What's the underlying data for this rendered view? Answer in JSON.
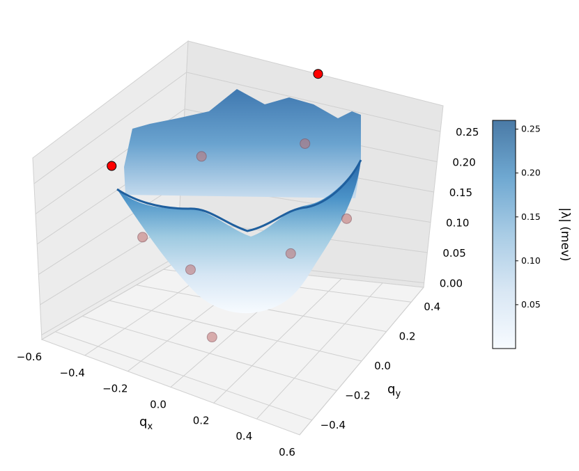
{
  "chart_data": {
    "type": "surface3d",
    "title": "",
    "x": {
      "label": "q",
      "sub": "x",
      "ticks": [
        "−0.6",
        "−0.4",
        "−0.2",
        "0.0",
        "0.2",
        "0.4",
        "0.6"
      ],
      "lim": [
        -0.6,
        0.6
      ]
    },
    "y": {
      "label": "q",
      "sub": "y",
      "ticks": [
        "−0.4",
        "−0.2",
        "0.0",
        "0.2",
        "0.4"
      ],
      "lim": [
        -0.5,
        0.5
      ]
    },
    "z": {
      "ticks": [
        "0.00",
        "0.05",
        "0.10",
        "0.15",
        "0.20",
        "0.25"
      ],
      "lim": [
        0.0,
        0.26
      ]
    },
    "colorbar": {
      "label": "|λ| (mev)",
      "ticks": [
        "0.05",
        "0.10",
        "0.15",
        "0.20",
        "0.25"
      ],
      "range": [
        0.0,
        0.26
      ],
      "colormap": "Blues",
      "color_low": "#f7fbff",
      "color_high": "#4a7aa6"
    },
    "surface": {
      "min": 0.0,
      "max": 0.26,
      "shape": "bowl with rippled rim",
      "grid": true
    },
    "points": {
      "red_markers": [
        {
          "qx": -0.58,
          "qy": -0.05,
          "value": 0.18
        },
        {
          "qx": 0.05,
          "qy": 0.5,
          "value": 0.28
        }
      ],
      "faint_markers": [
        {
          "qx": -0.25,
          "qy": 0.1,
          "value": 0.2
        },
        {
          "qx": 0.15,
          "qy": 0.25,
          "value": 0.22
        },
        {
          "qx": -0.3,
          "qy": -0.25,
          "value": 0.12
        },
        {
          "qx": 0.45,
          "qy": 0.1,
          "value": 0.15
        },
        {
          "qx": -0.1,
          "qy": -0.2,
          "value": 0.08
        },
        {
          "qx": 0.25,
          "qy": 0.0,
          "value": 0.1
        },
        {
          "qx": 0.1,
          "qy": -0.35,
          "value": 0.02
        }
      ],
      "red_color": "#ff0000",
      "faint_color": "#c07070"
    }
  }
}
